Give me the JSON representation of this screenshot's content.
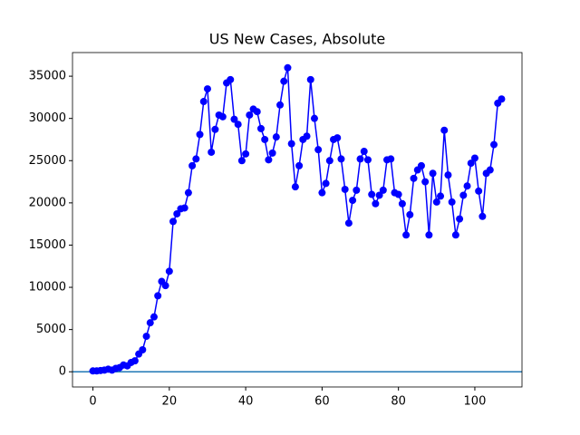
{
  "chart_data": {
    "type": "line",
    "title": "US New Cases, Absolute",
    "x": [
      0,
      1,
      2,
      3,
      4,
      5,
      6,
      7,
      8,
      9,
      10,
      11,
      12,
      13,
      14,
      15,
      16,
      17,
      18,
      19,
      20,
      21,
      22,
      23,
      24,
      25,
      26,
      27,
      28,
      29,
      30,
      31,
      32,
      33,
      34,
      35,
      36,
      37,
      38,
      39,
      40,
      41,
      42,
      43,
      44,
      45,
      46,
      47,
      48,
      49,
      50,
      51,
      52,
      53,
      54,
      55,
      56,
      57,
      58,
      59,
      60,
      61,
      62,
      63,
      64,
      65,
      66,
      67,
      68,
      69,
      70,
      71,
      72,
      73,
      74,
      75,
      76,
      77,
      78,
      79,
      80,
      81,
      82,
      83,
      84,
      85,
      86,
      87,
      88,
      89,
      90,
      91,
      92,
      93,
      94,
      95,
      96,
      97,
      98,
      99,
      100,
      101,
      102,
      103,
      104,
      105,
      106,
      107
    ],
    "series": [
      {
        "color": "#0000ff",
        "values": [
          100,
          100,
          150,
          200,
          300,
          200,
          400,
          500,
          800,
          700,
          1100,
          1300,
          2100,
          2600,
          4200,
          5800,
          6500,
          9000,
          10700,
          10200,
          11900,
          17800,
          18700,
          19300,
          19400,
          21200,
          24400,
          25200,
          28100,
          32000,
          33500,
          26000,
          28700,
          30400,
          30200,
          34200,
          34600,
          29900,
          29300,
          25000,
          25800,
          30400,
          31100,
          30800,
          28800,
          27500,
          25100,
          25900,
          27800,
          31600,
          34400,
          36000,
          27000,
          21900,
          24400,
          27500,
          27900,
          34600,
          30000,
          26300,
          21200,
          22300,
          25000,
          27500,
          27700,
          25200,
          21600,
          17600,
          20300,
          21500,
          25200,
          26100,
          25100,
          21000,
          19900,
          20900,
          21500,
          25100,
          25200,
          21200,
          21000,
          19900,
          16200,
          18600,
          22900,
          23900,
          24400,
          22500,
          16200,
          23500,
          20100,
          20800,
          28600,
          23300,
          20100,
          16200,
          18100,
          20900,
          22000,
          24700,
          25300,
          21400,
          18400,
          23500,
          23900,
          26900,
          31800,
          32300
        ]
      }
    ],
    "hline": {
      "value": 0,
      "color": "#1f77b4"
    },
    "xlim": [
      -5.35,
      112.35
    ],
    "xticks": [
      0,
      20,
      40,
      60,
      80,
      100
    ],
    "ylim": [
      -1800,
      37800
    ],
    "yticks": [
      0,
      5000,
      10000,
      15000,
      20000,
      25000,
      30000,
      35000
    ]
  }
}
